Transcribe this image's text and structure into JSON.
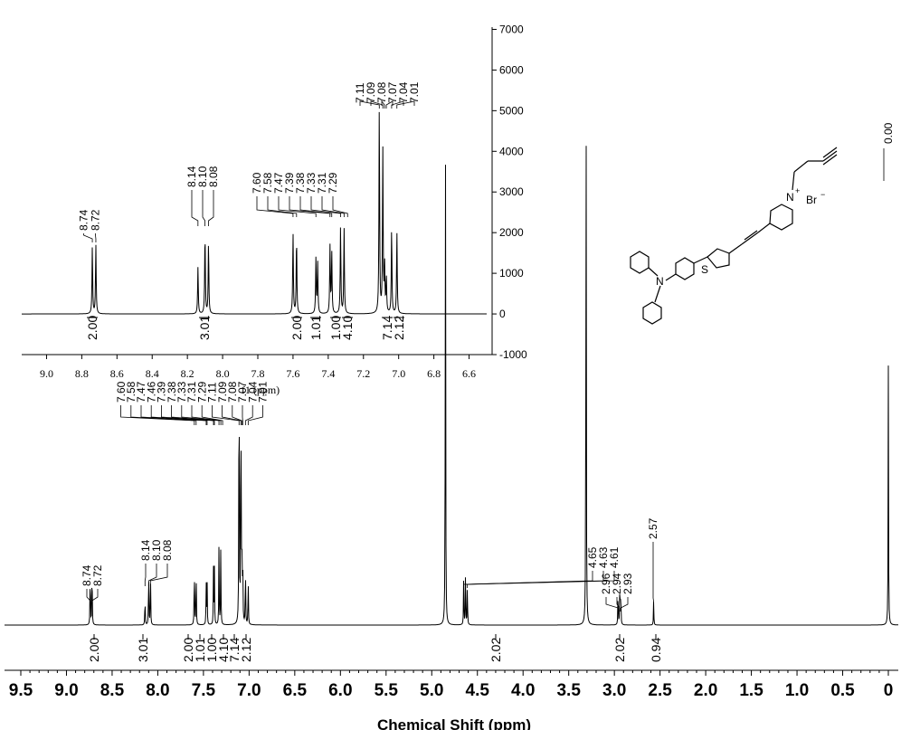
{
  "chart_data": [
    {
      "type": "line",
      "role": "main",
      "xlabel": "Chemical Shift (ppm)",
      "xlim": [
        9.5,
        0
      ],
      "x_ticks": [
        "9.5",
        "9.0",
        "8.5",
        "8.0",
        "7.5",
        "7.0",
        "6.5",
        "6.0",
        "5.5",
        "5.0",
        "4.5",
        "4.0",
        "3.5",
        "3.0",
        "2.5",
        "2.0",
        "1.5",
        "1.0",
        "0.5",
        "0"
      ],
      "peaks": [
        {
          "ppm": 8.74,
          "height": 0.1
        },
        {
          "ppm": 8.72,
          "height": 0.11
        },
        {
          "ppm": 8.14,
          "height": 0.05
        },
        {
          "ppm": 8.1,
          "height": 0.1
        },
        {
          "ppm": 8.08,
          "height": 0.09
        },
        {
          "ppm": 7.6,
          "height": 0.11
        },
        {
          "ppm": 7.58,
          "height": 0.1
        },
        {
          "ppm": 7.47,
          "height": 0.07
        },
        {
          "ppm": 7.46,
          "height": 0.07
        },
        {
          "ppm": 7.39,
          "height": 0.09
        },
        {
          "ppm": 7.38,
          "height": 0.09
        },
        {
          "ppm": 7.33,
          "height": 0.13
        },
        {
          "ppm": 7.31,
          "height": 0.13
        },
        {
          "ppm": 7.11,
          "height": 0.55
        },
        {
          "ppm": 7.09,
          "height": 0.45
        },
        {
          "ppm": 7.08,
          "height": 0.15
        },
        {
          "ppm": 7.07,
          "height": 0.12
        },
        {
          "ppm": 7.04,
          "height": 0.1
        },
        {
          "ppm": 7.01,
          "height": 0.08
        },
        {
          "ppm": 4.85,
          "height": 0.85
        },
        {
          "ppm": 4.65,
          "height": 0.08
        },
        {
          "ppm": 4.63,
          "height": 0.09
        },
        {
          "ppm": 4.61,
          "height": 0.07
        },
        {
          "ppm": 3.31,
          "height": 1.0
        },
        {
          "ppm": 2.96,
          "height": 0.06
        },
        {
          "ppm": 2.94,
          "height": 0.08
        },
        {
          "ppm": 2.93,
          "height": 0.06
        },
        {
          "ppm": 2.57,
          "height": 0.04
        },
        {
          "ppm": 0.0,
          "height": 0.42
        }
      ],
      "peak_label_groups": [
        {
          "labels": [
            "8.74",
            "8.72"
          ],
          "ppms": [
            8.74,
            8.72
          ]
        },
        {
          "labels": [
            "8.14",
            "8.10",
            "8.08"
          ],
          "ppms": [
            8.14,
            8.1,
            8.08
          ]
        },
        {
          "labels": [
            "7.60",
            "7.58",
            "7.47",
            "7.46",
            "7.39",
            "7.38",
            "7.33",
            "7.31",
            "7.29",
            "7.11",
            "7.09",
            "7.08",
            "7.07",
            "7.04",
            "7.01"
          ],
          "ppms": [
            7.6,
            7.58,
            7.47,
            7.46,
            7.39,
            7.38,
            7.33,
            7.31,
            7.29,
            7.11,
            7.09,
            7.08,
            7.07,
            7.04,
            7.01
          ]
        },
        {
          "labels": [
            "4.65",
            "4.63",
            "4.61"
          ],
          "ppms": [
            4.65,
            4.63,
            4.61
          ]
        },
        {
          "labels": [
            "2.96",
            "2.94",
            "2.93"
          ],
          "ppms": [
            2.96,
            2.94,
            2.93
          ]
        },
        {
          "labels": [
            "2.57"
          ],
          "ppms": [
            2.57
          ]
        }
      ],
      "integrals": [
        {
          "value": "2.00",
          "ppm": 8.73
        },
        {
          "value": "3.01",
          "ppm": 8.1
        },
        {
          "value": "2.00",
          "ppm": 7.59
        },
        {
          "value": "1.01",
          "ppm": 7.47
        },
        {
          "value": "1.00",
          "ppm": 7.39
        },
        {
          "value": "4.10",
          "ppm": 7.32
        },
        {
          "value": "7.14",
          "ppm": 7.1
        },
        {
          "value": "2.12",
          "ppm": 7.02
        },
        {
          "value": "2.02",
          "ppm": 4.63
        },
        {
          "value": "2.02",
          "ppm": 2.94
        },
        {
          "value": "0.94",
          "ppm": 2.57
        }
      ]
    },
    {
      "type": "line",
      "role": "inset",
      "xlabel": "f1 (ppm)",
      "xlim": [
        9.1,
        6.5
      ],
      "ylim": [
        -1000,
        7500
      ],
      "x_ticks": [
        "9.0",
        "8.8",
        "8.6",
        "8.4",
        "8.2",
        "8.0",
        "7.8",
        "7.6",
        "7.4",
        "7.2",
        "7.0",
        "6.8",
        "6.6"
      ],
      "y_ticks": [
        "7000",
        "6000",
        "5000",
        "4000",
        "3000",
        "2000",
        "1000",
        "0",
        "-1000"
      ],
      "peaks": [
        {
          "ppm": 8.74,
          "height": 1650
        },
        {
          "ppm": 8.72,
          "height": 1700
        },
        {
          "ppm": 8.14,
          "height": 1150
        },
        {
          "ppm": 8.1,
          "height": 2000
        },
        {
          "ppm": 8.08,
          "height": 1750
        },
        {
          "ppm": 7.6,
          "height": 2000
        },
        {
          "ppm": 7.58,
          "height": 1900
        },
        {
          "ppm": 7.47,
          "height": 1350
        },
        {
          "ppm": 7.46,
          "height": 1250
        },
        {
          "ppm": 7.39,
          "height": 1650
        },
        {
          "ppm": 7.38,
          "height": 1500
        },
        {
          "ppm": 7.33,
          "height": 2150
        },
        {
          "ppm": 7.31,
          "height": 2100
        },
        {
          "ppm": 7.11,
          "height": 5100
        },
        {
          "ppm": 7.09,
          "height": 4000
        },
        {
          "ppm": 7.08,
          "height": 1150
        },
        {
          "ppm": 7.07,
          "height": 900
        },
        {
          "ppm": 7.04,
          "height": 2100
        },
        {
          "ppm": 7.01,
          "height": 2000
        }
      ],
      "peak_label_groups": [
        {
          "labels": [
            "8.74",
            "8.72"
          ],
          "ppms": [
            8.74,
            8.72
          ]
        },
        {
          "labels": [
            "8.14",
            "8.10",
            "8.08"
          ],
          "ppms": [
            8.14,
            8.1,
            8.08
          ]
        },
        {
          "labels": [
            "7.60",
            "7.58",
            "7.47",
            "7.39",
            "7.38",
            "7.33",
            "7.31",
            "7.29"
          ],
          "ppms": [
            7.6,
            7.58,
            7.47,
            7.39,
            7.38,
            7.33,
            7.31,
            7.29
          ]
        },
        {
          "labels": [
            "7.11",
            "7.09",
            "7.08",
            "7.07",
            "7.04",
            "7.01"
          ],
          "ppms": [
            7.11,
            7.09,
            7.08,
            7.07,
            7.04,
            7.01
          ]
        }
      ],
      "integrals": [
        {
          "value": "2.00",
          "ppm": 8.73
        },
        {
          "value": "3.01",
          "ppm": 8.1
        },
        {
          "value": "2.00",
          "ppm": 7.59
        },
        {
          "value": "1.01",
          "ppm": 7.47
        },
        {
          "value": "1.00",
          "ppm": 7.39
        },
        {
          "value": "4.10",
          "ppm": 7.32
        },
        {
          "value": "7.14",
          "ppm": 7.1
        },
        {
          "value": "2.12",
          "ppm": 7.02
        }
      ],
      "reference_label": "0.00"
    }
  ],
  "structure": {
    "atom_labels": [
      "S",
      "N",
      "N",
      "+",
      "Br",
      "−"
    ]
  }
}
